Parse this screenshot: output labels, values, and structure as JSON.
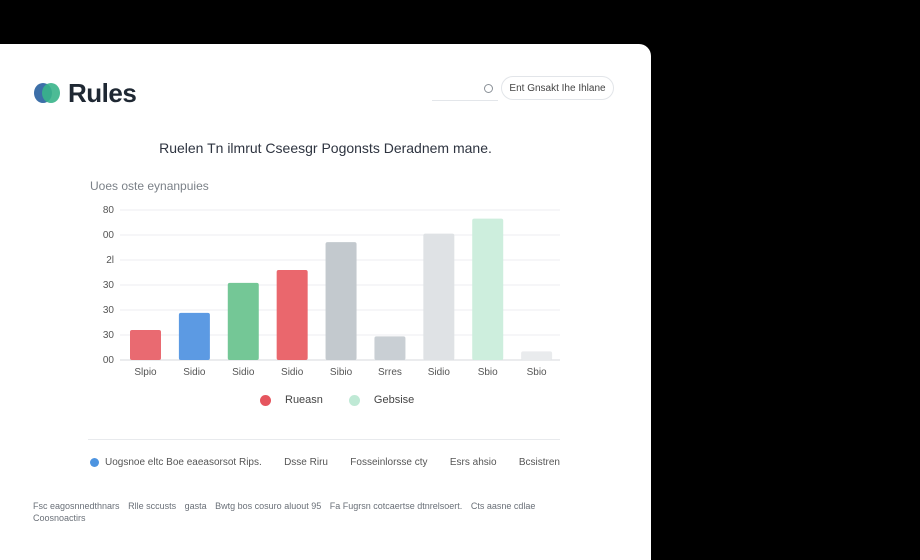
{
  "app": {
    "name": "Rules"
  },
  "header": {
    "search_button_label": "Ent Gnsakt Ihe Ihlane"
  },
  "chart_data": {
    "type": "bar",
    "title": "Ruelen Tn ilmrut Cseesgr Pogonsts Deradnem mane.",
    "subtitle": "Uoes oste eynanpuies",
    "categories": [
      "Slpio",
      "Sidio",
      "Sidio",
      "Sidio",
      "Sibio",
      "Srres",
      "Sidio",
      "Sbio",
      "Sbio"
    ],
    "values": [
      14,
      22,
      36,
      42,
      55,
      11,
      59,
      66,
      4
    ],
    "colors": [
      "#e96a71",
      "#5c9ae3",
      "#74c796",
      "#ea676d",
      "#c3c9ce",
      "#c9cfd4",
      "#dfe2e5",
      "#cdeedd",
      "#e9ebed"
    ],
    "y_tick_labels": [
      "00",
      "30",
      "30",
      "30",
      "2l",
      "00",
      "80"
    ],
    "ylim": [
      0,
      70
    ],
    "grid": true,
    "legend_position": "bottom",
    "legend": [
      {
        "label": "Rueasn",
        "color": "#e5555e"
      },
      {
        "label": "Gebsise",
        "color": "#bfe9d5"
      }
    ]
  },
  "info_row": {
    "items": [
      "Uogsnoe eltc Boe eaeasorsot Rips.",
      "Dsse Riru",
      "Fosseinlorsse cty",
      "Esrs ahsio",
      "Bcsistren"
    ],
    "dot_color": "#4d94e0"
  },
  "footer": {
    "segments": [
      "Fsc eagosnnedthnars",
      "Rlle sccusts",
      "gasta",
      "Bwtg bos cosuro aluout 95",
      "Fa Fugrsn cotcaertse dtnrelsoert.",
      "Cts aasne cdlae",
      "Coosnoactirs"
    ]
  }
}
